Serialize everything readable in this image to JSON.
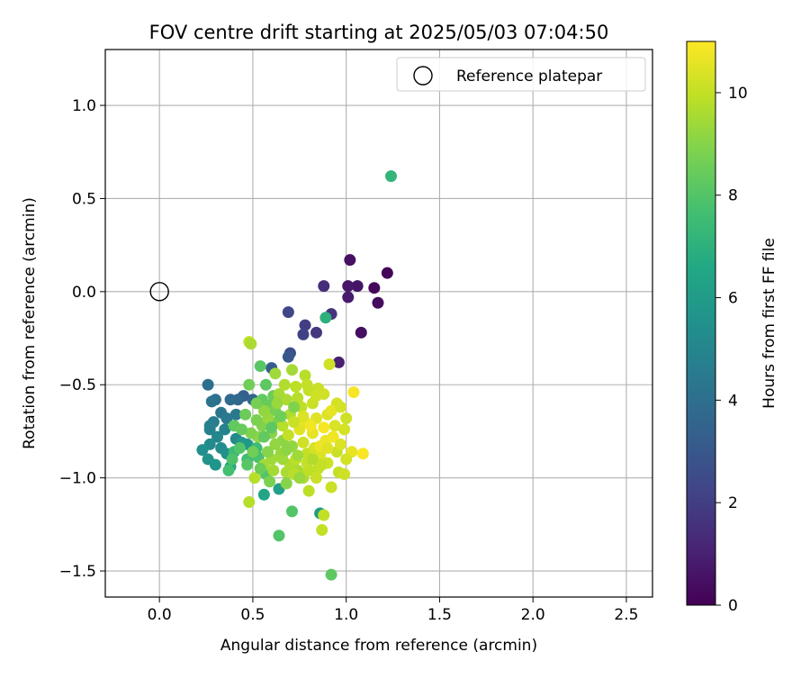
{
  "chart_data": {
    "type": "scatter",
    "title": "FOV centre drift starting at 2025/05/03 07:04:50",
    "xlabel": "Angular distance from reference (arcmin)",
    "ylabel": "Rotation from reference (arcmin)",
    "xlim": [
      -0.29,
      2.64
    ],
    "ylim": [
      -1.64,
      1.3
    ],
    "xticks": [
      0.0,
      0.5,
      1.0,
      1.5,
      2.0,
      2.5
    ],
    "xtick_labels": [
      "0.0",
      "0.5",
      "1.0",
      "1.5",
      "2.0",
      "2.5"
    ],
    "yticks": [
      -1.5,
      -1.0,
      -0.5,
      0.0,
      0.5,
      1.0
    ],
    "ytick_labels": [
      "−1.5",
      "−1.0",
      "−0.5",
      "0.0",
      "0.5",
      "1.0"
    ],
    "grid": true,
    "legend": {
      "position": "top-right",
      "entries": [
        "Reference platepar"
      ]
    },
    "reference_point": {
      "x": 0.0,
      "y": 0.0,
      "label": "Reference platepar"
    },
    "colorbar": {
      "label": "Hours from first FF file",
      "colormap": "viridis",
      "range": [
        0,
        11
      ],
      "ticks": [
        0,
        2,
        4,
        6,
        8,
        10
      ],
      "tick_labels": [
        "0",
        "2",
        "4",
        "6",
        "8",
        "10"
      ]
    },
    "points": [
      {
        "x": 1.22,
        "y": 0.1,
        "t": 0.1
      },
      {
        "x": 1.15,
        "y": 0.02,
        "t": 0.2
      },
      {
        "x": 1.17,
        "y": -0.06,
        "t": 0.3
      },
      {
        "x": 1.08,
        "y": -0.22,
        "t": 0.4
      },
      {
        "x": 1.02,
        "y": 0.17,
        "t": 0.5
      },
      {
        "x": 1.06,
        "y": 0.03,
        "t": 0.6
      },
      {
        "x": 1.01,
        "y": 0.03,
        "t": 0.7
      },
      {
        "x": 1.01,
        "y": -0.03,
        "t": 0.8
      },
      {
        "x": 0.96,
        "y": -0.38,
        "t": 1.0
      },
      {
        "x": 0.88,
        "y": 0.03,
        "t": 1.4
      },
      {
        "x": 0.92,
        "y": -0.12,
        "t": 1.6
      },
      {
        "x": 0.84,
        "y": -0.22,
        "t": 1.8
      },
      {
        "x": 0.78,
        "y": -0.18,
        "t": 2.0
      },
      {
        "x": 0.77,
        "y": -0.23,
        "t": 2.1
      },
      {
        "x": 0.69,
        "y": -0.11,
        "t": 2.3
      },
      {
        "x": 0.7,
        "y": -0.33,
        "t": 2.6
      },
      {
        "x": 0.69,
        "y": -0.35,
        "t": 3.0
      },
      {
        "x": 0.6,
        "y": -0.41,
        "t": 3.2
      },
      {
        "x": 0.45,
        "y": -0.56,
        "t": 3.4
      },
      {
        "x": 0.5,
        "y": -0.58,
        "t": 3.6
      },
      {
        "x": 0.42,
        "y": -0.58,
        "t": 3.7
      },
      {
        "x": 0.38,
        "y": -0.58,
        "t": 3.8
      },
      {
        "x": 0.26,
        "y": -0.5,
        "t": 4.0
      },
      {
        "x": 0.3,
        "y": -0.58,
        "t": 4.1
      },
      {
        "x": 0.28,
        "y": -0.59,
        "t": 4.2
      },
      {
        "x": 0.33,
        "y": -0.65,
        "t": 4.3
      },
      {
        "x": 0.41,
        "y": -0.66,
        "t": 4.4
      },
      {
        "x": 0.36,
        "y": -0.68,
        "t": 4.5
      },
      {
        "x": 0.29,
        "y": -0.7,
        "t": 4.6
      },
      {
        "x": 0.27,
        "y": -0.72,
        "t": 4.7
      },
      {
        "x": 0.27,
        "y": -0.74,
        "t": 4.8
      },
      {
        "x": 0.35,
        "y": -0.74,
        "t": 4.9
      },
      {
        "x": 0.31,
        "y": -0.78,
        "t": 5.0
      },
      {
        "x": 0.41,
        "y": -0.79,
        "t": 5.1
      },
      {
        "x": 0.27,
        "y": -0.82,
        "t": 5.2
      },
      {
        "x": 0.33,
        "y": -0.84,
        "t": 5.3
      },
      {
        "x": 0.23,
        "y": -0.85,
        "t": 5.4
      },
      {
        "x": 0.36,
        "y": -0.87,
        "t": 5.5
      },
      {
        "x": 0.26,
        "y": -0.9,
        "t": 5.6
      },
      {
        "x": 0.3,
        "y": -0.93,
        "t": 5.7
      },
      {
        "x": 0.44,
        "y": -0.81,
        "t": 5.8
      },
      {
        "x": 0.47,
        "y": -0.82,
        "t": 5.9
      },
      {
        "x": 0.86,
        "y": -1.19,
        "t": 6.0
      },
      {
        "x": 0.64,
        "y": -1.06,
        "t": 6.2
      },
      {
        "x": 0.56,
        "y": -1.09,
        "t": 6.4
      },
      {
        "x": 0.38,
        "y": -0.94,
        "t": 6.6
      },
      {
        "x": 0.89,
        "y": -0.14,
        "t": 7.0
      },
      {
        "x": 1.24,
        "y": 0.62,
        "t": 7.2
      },
      {
        "x": 0.4,
        "y": -0.86,
        "t": 7.4
      },
      {
        "x": 0.52,
        "y": -0.84,
        "t": 7.5
      },
      {
        "x": 0.47,
        "y": -0.9,
        "t": 7.6
      },
      {
        "x": 0.53,
        "y": -0.89,
        "t": 7.8
      },
      {
        "x": 0.57,
        "y": -0.98,
        "t": 8.0
      },
      {
        "x": 0.71,
        "y": -1.18,
        "t": 8.0
      },
      {
        "x": 0.64,
        "y": -1.31,
        "t": 8.0
      },
      {
        "x": 0.92,
        "y": -1.52,
        "t": 8.2
      },
      {
        "x": 0.54,
        "y": -0.4,
        "t": 8.1
      },
      {
        "x": 0.57,
        "y": -0.5,
        "t": 8.2
      },
      {
        "x": 0.55,
        "y": -0.58,
        "t": 8.3
      },
      {
        "x": 0.58,
        "y": -0.61,
        "t": 8.4
      },
      {
        "x": 0.61,
        "y": -0.56,
        "t": 8.5
      },
      {
        "x": 0.59,
        "y": -0.64,
        "t": 8.6
      },
      {
        "x": 0.62,
        "y": -0.64,
        "t": 8.7
      },
      {
        "x": 0.63,
        "y": -0.7,
        "t": 8.8
      },
      {
        "x": 0.55,
        "y": -0.72,
        "t": 8.9
      },
      {
        "x": 0.6,
        "y": -0.76,
        "t": 9.0
      },
      {
        "x": 0.66,
        "y": -0.8,
        "t": 9.1
      },
      {
        "x": 0.71,
        "y": -0.83,
        "t": 9.2
      },
      {
        "x": 0.65,
        "y": -0.87,
        "t": 9.3
      },
      {
        "x": 0.6,
        "y": -0.9,
        "t": 9.4
      },
      {
        "x": 0.56,
        "y": -0.93,
        "t": 9.5
      },
      {
        "x": 0.74,
        "y": -0.96,
        "t": 9.6
      },
      {
        "x": 0.77,
        "y": -1.0,
        "t": 9.7
      },
      {
        "x": 0.51,
        "y": -1.0,
        "t": 9.8
      },
      {
        "x": 0.48,
        "y": -1.13,
        "t": 9.8
      },
      {
        "x": 0.8,
        "y": -1.07,
        "t": 9.9
      },
      {
        "x": 0.88,
        "y": -1.2,
        "t": 10.0
      },
      {
        "x": 0.87,
        "y": -1.28,
        "t": 10.0
      },
      {
        "x": 0.48,
        "y": -0.27,
        "t": 10.0
      },
      {
        "x": 0.49,
        "y": -0.28,
        "t": 9.6
      },
      {
        "x": 0.62,
        "y": -0.44,
        "t": 9.4
      },
      {
        "x": 0.71,
        "y": -0.42,
        "t": 9.5
      },
      {
        "x": 0.78,
        "y": -0.45,
        "t": 9.8
      },
      {
        "x": 0.73,
        "y": -0.51,
        "t": 9.9
      },
      {
        "x": 0.8,
        "y": -0.53,
        "t": 10.0
      },
      {
        "x": 0.85,
        "y": -0.52,
        "t": 10.1
      },
      {
        "x": 0.91,
        "y": -0.39,
        "t": 10.2
      },
      {
        "x": 0.95,
        "y": -0.6,
        "t": 10.3
      },
      {
        "x": 1.04,
        "y": -0.54,
        "t": 10.9
      },
      {
        "x": 0.9,
        "y": -0.66,
        "t": 10.4
      },
      {
        "x": 0.84,
        "y": -0.68,
        "t": 10.5
      },
      {
        "x": 0.78,
        "y": -0.7,
        "t": 10.6
      },
      {
        "x": 0.75,
        "y": -0.74,
        "t": 10.5
      },
      {
        "x": 0.82,
        "y": -0.76,
        "t": 10.6
      },
      {
        "x": 0.89,
        "y": -0.8,
        "t": 10.7
      },
      {
        "x": 0.94,
        "y": -0.72,
        "t": 10.4
      },
      {
        "x": 0.99,
        "y": -0.74,
        "t": 10.3
      },
      {
        "x": 1.0,
        "y": -0.68,
        "t": 10.2
      },
      {
        "x": 1.03,
        "y": -0.86,
        "t": 10.6
      },
      {
        "x": 1.09,
        "y": -0.87,
        "t": 10.9
      },
      {
        "x": 0.95,
        "y": -0.86,
        "t": 10.1
      },
      {
        "x": 1.0,
        "y": -0.9,
        "t": 10.3
      },
      {
        "x": 0.9,
        "y": -0.92,
        "t": 10.2
      },
      {
        "x": 0.85,
        "y": -0.95,
        "t": 10.0
      },
      {
        "x": 0.8,
        "y": -0.96,
        "t": 9.9
      },
      {
        "x": 0.96,
        "y": -0.97,
        "t": 10.0
      },
      {
        "x": 0.92,
        "y": -1.05,
        "t": 10.1
      },
      {
        "x": 0.99,
        "y": -0.98,
        "t": 10.2
      },
      {
        "x": 0.7,
        "y": -0.93,
        "t": 9.7
      },
      {
        "x": 0.68,
        "y": -0.97,
        "t": 9.6
      },
      {
        "x": 0.73,
        "y": -0.9,
        "t": 9.9
      },
      {
        "x": 0.79,
        "y": -0.87,
        "t": 10.0
      },
      {
        "x": 0.83,
        "y": -0.84,
        "t": 10.3
      },
      {
        "x": 0.86,
        "y": -0.88,
        "t": 10.4
      },
      {
        "x": 0.77,
        "y": -0.81,
        "t": 10.2
      },
      {
        "x": 0.69,
        "y": -0.77,
        "t": 10.0
      },
      {
        "x": 0.66,
        "y": -0.72,
        "t": 9.8
      },
      {
        "x": 0.7,
        "y": -0.66,
        "t": 9.7
      },
      {
        "x": 0.76,
        "y": -0.62,
        "t": 9.9
      },
      {
        "x": 0.82,
        "y": -0.6,
        "t": 10.1
      },
      {
        "x": 0.88,
        "y": -0.55,
        "t": 10.2
      },
      {
        "x": 0.92,
        "y": -0.64,
        "t": 10.6
      },
      {
        "x": 0.97,
        "y": -0.62,
        "t": 10.3
      },
      {
        "x": 0.68,
        "y": -0.58,
        "t": 9.6
      },
      {
        "x": 0.64,
        "y": -0.55,
        "t": 9.5
      },
      {
        "x": 0.67,
        "y": -0.5,
        "t": 9.7
      },
      {
        "x": 0.74,
        "y": -0.57,
        "t": 9.8
      },
      {
        "x": 0.79,
        "y": -0.5,
        "t": 10.0
      },
      {
        "x": 0.84,
        "y": -0.56,
        "t": 10.2
      },
      {
        "x": 0.88,
        "y": -0.73,
        "t": 10.9
      },
      {
        "x": 0.93,
        "y": -0.78,
        "t": 10.8
      },
      {
        "x": 0.86,
        "y": -0.83,
        "t": 10.7
      },
      {
        "x": 0.81,
        "y": -0.72,
        "t": 10.8
      },
      {
        "x": 0.77,
        "y": -0.67,
        "t": 10.4
      },
      {
        "x": 0.72,
        "y": -0.7,
        "t": 10.1
      },
      {
        "x": 0.58,
        "y": -0.68,
        "t": 9.3
      },
      {
        "x": 0.62,
        "y": -0.82,
        "t": 9.2
      },
      {
        "x": 0.58,
        "y": -0.86,
        "t": 9.0
      },
      {
        "x": 0.53,
        "y": -0.78,
        "t": 9.1
      },
      {
        "x": 0.49,
        "y": -0.76,
        "t": 8.9
      },
      {
        "x": 0.52,
        "y": -0.69,
        "t": 8.8
      },
      {
        "x": 0.56,
        "y": -0.64,
        "t": 9.2
      },
      {
        "x": 0.63,
        "y": -0.6,
        "t": 9.3
      },
      {
        "x": 0.66,
        "y": -0.9,
        "t": 9.4
      },
      {
        "x": 0.61,
        "y": -0.96,
        "t": 9.5
      },
      {
        "x": 0.72,
        "y": -0.98,
        "t": 9.8
      },
      {
        "x": 0.79,
        "y": -0.92,
        "t": 10.0
      },
      {
        "x": 0.84,
        "y": -1.0,
        "t": 10.1
      },
      {
        "x": 0.9,
        "y": -0.84,
        "t": 10.5
      },
      {
        "x": 0.97,
        "y": -0.82,
        "t": 10.4
      },
      {
        "x": 0.48,
        "y": -0.5,
        "t": 8.6
      },
      {
        "x": 0.52,
        "y": -0.6,
        "t": 8.7
      },
      {
        "x": 0.46,
        "y": -0.66,
        "t": 8.5
      },
      {
        "x": 0.4,
        "y": -0.72,
        "t": 8.3
      },
      {
        "x": 0.44,
        "y": -0.74,
        "t": 8.4
      },
      {
        "x": 0.5,
        "y": -0.86,
        "t": 8.6
      },
      {
        "x": 0.43,
        "y": -0.84,
        "t": 8.0
      },
      {
        "x": 0.47,
        "y": -0.93,
        "t": 8.1
      },
      {
        "x": 0.39,
        "y": -0.9,
        "t": 7.9
      },
      {
        "x": 0.37,
        "y": -0.96,
        "t": 7.7
      },
      {
        "x": 0.54,
        "y": -0.95,
        "t": 8.5
      },
      {
        "x": 0.59,
        "y": -1.02,
        "t": 8.8
      },
      {
        "x": 0.68,
        "y": -1.03,
        "t": 9.0
      },
      {
        "x": 0.75,
        "y": -1.0,
        "t": 9.3
      },
      {
        "x": 0.6,
        "y": -0.73,
        "t": 8.2
      },
      {
        "x": 0.56,
        "y": -0.78,
        "t": 8.3
      },
      {
        "x": 0.65,
        "y": -0.67,
        "t": 8.6
      },
      {
        "x": 0.72,
        "y": -0.62,
        "t": 8.9
      },
      {
        "x": 0.68,
        "y": -0.85,
        "t": 9.1
      },
      {
        "x": 0.74,
        "y": -0.88,
        "t": 9.4
      },
      {
        "x": 0.82,
        "y": -0.9,
        "t": 9.7
      },
      {
        "x": 0.87,
        "y": -0.93,
        "t": 10.0
      }
    ]
  }
}
